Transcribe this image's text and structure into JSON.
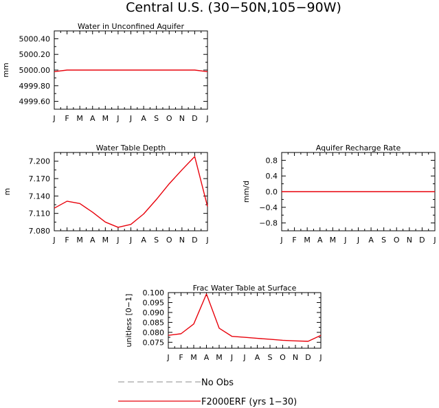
{
  "figure_title": "Central U.S. (30−50N,105−90W)",
  "series_color": "#e8000a",
  "obs_color": "#888888",
  "legend": {
    "obs_label": "No Obs",
    "model_label": "F2000ERF (yrs 1−30)"
  },
  "chart_data": [
    {
      "id": "unconfined",
      "type": "line",
      "title": "Water in Unconfined Aquifer",
      "ylabel": "mm",
      "xlabel": "",
      "categories": [
        "J",
        "F",
        "M",
        "A",
        "M",
        "J",
        "J",
        "A",
        "S",
        "O",
        "N",
        "D",
        "J"
      ],
      "ylim": [
        4999.5,
        5000.5
      ],
      "yticks": [
        4999.6,
        4999.8,
        5000.0,
        5000.2,
        5000.4
      ],
      "yticklabels": [
        "4999.60",
        "4999.80",
        "5000.00",
        "5000.20",
        "5000.40"
      ],
      "series": [
        {
          "name": "F2000ERF (yrs 1−30)",
          "values": [
            4999.98,
            5000.0,
            5000.0,
            5000.0,
            5000.0,
            5000.0,
            5000.0,
            5000.0,
            5000.0,
            5000.0,
            5000.0,
            5000.0,
            4999.98
          ]
        }
      ]
    },
    {
      "id": "depth",
      "type": "line",
      "title": "Water Table Depth",
      "ylabel": "m",
      "xlabel": "",
      "categories": [
        "J",
        "F",
        "M",
        "A",
        "M",
        "J",
        "J",
        "A",
        "S",
        "O",
        "N",
        "D",
        "J"
      ],
      "ylim": [
        7.08,
        7.215
      ],
      "yticks": [
        7.08,
        7.11,
        7.14,
        7.17,
        7.2
      ],
      "yticklabels": [
        "7.080",
        "7.110",
        "7.140",
        "7.170",
        "7.200"
      ],
      "series": [
        {
          "name": "F2000ERF (yrs 1−30)",
          "values": [
            7.119,
            7.131,
            7.127,
            7.112,
            7.095,
            7.086,
            7.091,
            7.109,
            7.134,
            7.161,
            7.185,
            7.208,
            7.122
          ]
        }
      ]
    },
    {
      "id": "recharge",
      "type": "line",
      "title": "Aquifer Recharge Rate",
      "ylabel": "mm/d",
      "xlabel": "",
      "categories": [
        "J",
        "F",
        "M",
        "A",
        "M",
        "J",
        "J",
        "A",
        "S",
        "O",
        "N",
        "D",
        "J"
      ],
      "ylim": [
        -1.0,
        1.0
      ],
      "yticks": [
        -0.8,
        -0.4,
        0.0,
        0.4,
        0.8
      ],
      "yticklabels": [
        "−0.8",
        "−0.4",
        "0.0",
        "0.4",
        "0.8"
      ],
      "series": [
        {
          "name": "F2000ERF (yrs 1−30)",
          "values": [
            0,
            0,
            0,
            0,
            0,
            0,
            0,
            0,
            0,
            0,
            0,
            0,
            0
          ]
        }
      ]
    },
    {
      "id": "frac",
      "type": "line",
      "title": "Frac Water Table at Surface",
      "ylabel": "unitless [0−1]",
      "xlabel": "",
      "categories": [
        "J",
        "F",
        "M",
        "A",
        "M",
        "J",
        "J",
        "A",
        "S",
        "O",
        "N",
        "D",
        "J"
      ],
      "ylim": [
        0.072,
        0.1
      ],
      "yticks": [
        0.075,
        0.08,
        0.085,
        0.09,
        0.095,
        0.1
      ],
      "yticklabels": [
        "0.075",
        "0.080",
        "0.085",
        "0.090",
        "0.095",
        "0.100"
      ],
      "series": [
        {
          "name": "F2000ERF (yrs 1−30)",
          "values": [
            0.0785,
            0.0793,
            0.0842,
            0.0993,
            0.0821,
            0.078,
            0.0775,
            0.077,
            0.0765,
            0.076,
            0.0757,
            0.0755,
            0.0785
          ]
        }
      ]
    }
  ]
}
